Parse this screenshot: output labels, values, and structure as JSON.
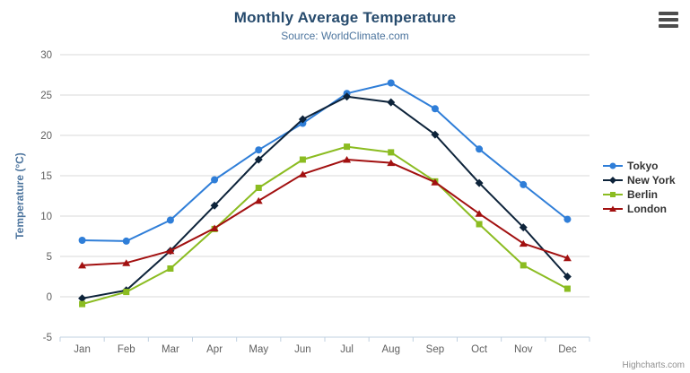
{
  "chart": {
    "credits": "Highcharts.com",
    "context_menu_icon": "hamburger-icon"
  },
  "chart_data": {
    "type": "line",
    "title": "Monthly Average Temperature",
    "subtitle": "Source: WorldClimate.com",
    "categories": [
      "Jan",
      "Feb",
      "Mar",
      "Apr",
      "May",
      "Jun",
      "Jul",
      "Aug",
      "Sep",
      "Oct",
      "Nov",
      "Dec"
    ],
    "xlabel": "",
    "ylabel": "Temperature (°C)",
    "ylim": [
      -5,
      30
    ],
    "yticks": [
      -5,
      0,
      5,
      10,
      15,
      20,
      25,
      30
    ],
    "grid": true,
    "legend_position": "right",
    "series": [
      {
        "name": "Tokyo",
        "color": "#2f7ed8",
        "marker": "circle",
        "values": [
          7.0,
          6.9,
          9.5,
          14.5,
          18.2,
          21.5,
          25.2,
          26.5,
          23.3,
          18.3,
          13.9,
          9.6
        ]
      },
      {
        "name": "New York",
        "color": "#0d233a",
        "marker": "diamond",
        "values": [
          -0.2,
          0.8,
          5.7,
          11.3,
          17.0,
          22.0,
          24.8,
          24.1,
          20.1,
          14.1,
          8.6,
          2.5
        ]
      },
      {
        "name": "Berlin",
        "color": "#8bbc21",
        "marker": "square",
        "values": [
          -0.9,
          0.6,
          3.5,
          8.4,
          13.5,
          17.0,
          18.6,
          17.9,
          14.3,
          9.0,
          3.9,
          1.0
        ]
      },
      {
        "name": "London",
        "color": "#a21010",
        "marker": "triangle",
        "values": [
          3.9,
          4.2,
          5.7,
          8.5,
          11.9,
          15.2,
          17.0,
          16.6,
          14.2,
          10.3,
          6.6,
          4.8
        ]
      }
    ]
  },
  "colors": {
    "title": "#274b6d",
    "subtitle": "#4d759e",
    "axis_title": "#4d759e",
    "tick_label": "#606060",
    "grid": "#d8d8d8",
    "axis_line": "#c0d0e0",
    "legend_text": "#333333",
    "credits": "#909090"
  }
}
